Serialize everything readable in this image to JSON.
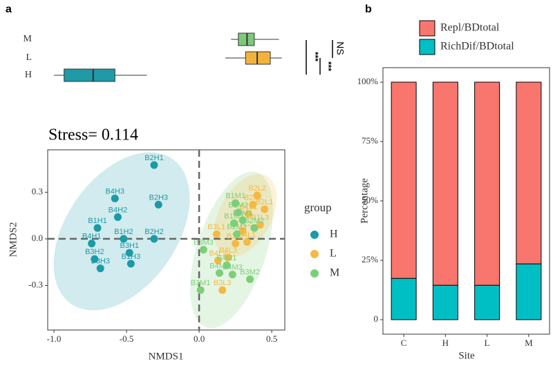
{
  "chart_data": [
    {
      "type": "boxplot",
      "panel_label": "a",
      "categories": [
        "M",
        "L",
        "H"
      ],
      "boxes": [
        {
          "name": "M",
          "color": "#7dc97a",
          "whislo": 0.22,
          "q1": 0.27,
          "med": 0.33,
          "q3": 0.38,
          "whishi": 0.55
        },
        {
          "name": "L",
          "color": "#f2b33d",
          "whislo": 0.18,
          "q1": 0.32,
          "med": 0.4,
          "q3": 0.49,
          "whishi": 0.57
        },
        {
          "name": "H",
          "color": "#1f9aa6",
          "whislo": -1.0,
          "q1": -0.93,
          "med": -0.73,
          "q3": -0.58,
          "whishi": -0.36
        }
      ],
      "xlim": [
        -1.043,
        0.59
      ],
      "annotations": [
        "NS",
        "***",
        "***"
      ]
    },
    {
      "type": "scatter",
      "title": "Stress= 0.114",
      "xlabel": "NMDS1",
      "ylabel": "NMDS2",
      "xlim": [
        -1.043,
        0.59
      ],
      "ylim": [
        -0.587,
        0.573
      ],
      "xticks": [
        {
          "value": -1.0,
          "label": "-1.0"
        },
        -0.5,
        {
          "value": 0.0,
          "label": "0.0"
        },
        0.5
      ],
      "yticks": [
        0.3,
        {
          "value": 0.0,
          "label": "0.0"
        },
        -0.3
      ],
      "legend_title": "group",
      "series": [
        {
          "name": "H",
          "color": "#1b9aa8",
          "labels": [
            "B2H1",
            "B4H3",
            "B2H3",
            "B4H2",
            "B1H1",
            "B1H2",
            "B2H2",
            "B4H1",
            "B3H1",
            "B3H2",
            "B3H3",
            "B1H3"
          ],
          "x": [
            -0.31,
            -0.58,
            -0.28,
            -0.56,
            -0.7,
            -0.52,
            -0.31,
            -0.74,
            -0.48,
            -0.72,
            -0.68,
            -0.47
          ],
          "y": [
            0.475,
            0.26,
            0.22,
            0.14,
            0.07,
            0.0,
            0.0,
            -0.03,
            -0.09,
            -0.13,
            -0.19,
            -0.16
          ]
        },
        {
          "name": "L",
          "color": "#f5b942",
          "labels": [
            "B1L1",
            "B1L2",
            "B1L3",
            "B2L1",
            "B2L2",
            "B2L3",
            "B3L1",
            "B3L2",
            "B3L3",
            "B4L1",
            "B4L2",
            "B4L3"
          ],
          "x": [
            0.34,
            0.3,
            0.42,
            0.45,
            0.4,
            0.37,
            0.12,
            0.25,
            0.16,
            0.33,
            0.13,
            0.2
          ],
          "y": [
            0.16,
            0.05,
            0.09,
            0.19,
            0.28,
            0.22,
            0.03,
            -0.03,
            -0.33,
            -0.02,
            -0.14,
            -0.12
          ]
        },
        {
          "name": "M",
          "color": "#7ccf79",
          "labels": [
            "B1M1",
            "B1M2",
            "B1M3",
            "B2M1",
            "B2M2",
            "B2M3",
            "B3M1",
            "B3M2",
            "B3M3",
            "B4M1",
            "B4M2",
            "B4M3"
          ],
          "x": [
            0.25,
            0.27,
            0.24,
            0.3,
            0.38,
            0.26,
            0.01,
            0.35,
            0.03,
            0.19,
            0.14,
            0.23
          ],
          "y": [
            0.23,
            0.17,
            0.1,
            0.12,
            0.07,
            0.03,
            -0.33,
            -0.26,
            -0.07,
            -0.17,
            -0.22,
            -0.23
          ]
        }
      ]
    },
    {
      "type": "stacked_bar",
      "panel_label": "b",
      "xlabel": "Site",
      "ylabel": "Percentage",
      "categories": [
        "C",
        "H",
        "L",
        "M"
      ],
      "ylim": [
        -6.1,
        106.1
      ],
      "yticks": [
        0,
        {
          "value": 25,
          "label": "25%"
        },
        {
          "value": 50,
          "label": "50%"
        },
        {
          "value": 75,
          "label": "75%"
        },
        {
          "value": 100,
          "label": "100%"
        }
      ],
      "series": [
        {
          "name": "Repl/BDtotal",
          "color": "#f8766d",
          "values": [
            82.6,
            85.5,
            85.5,
            76.5
          ]
        },
        {
          "name": "RichDif/BDtotal",
          "color": "#00bfc4",
          "values": [
            17.4,
            14.5,
            14.5,
            23.5
          ]
        }
      ]
    }
  ]
}
